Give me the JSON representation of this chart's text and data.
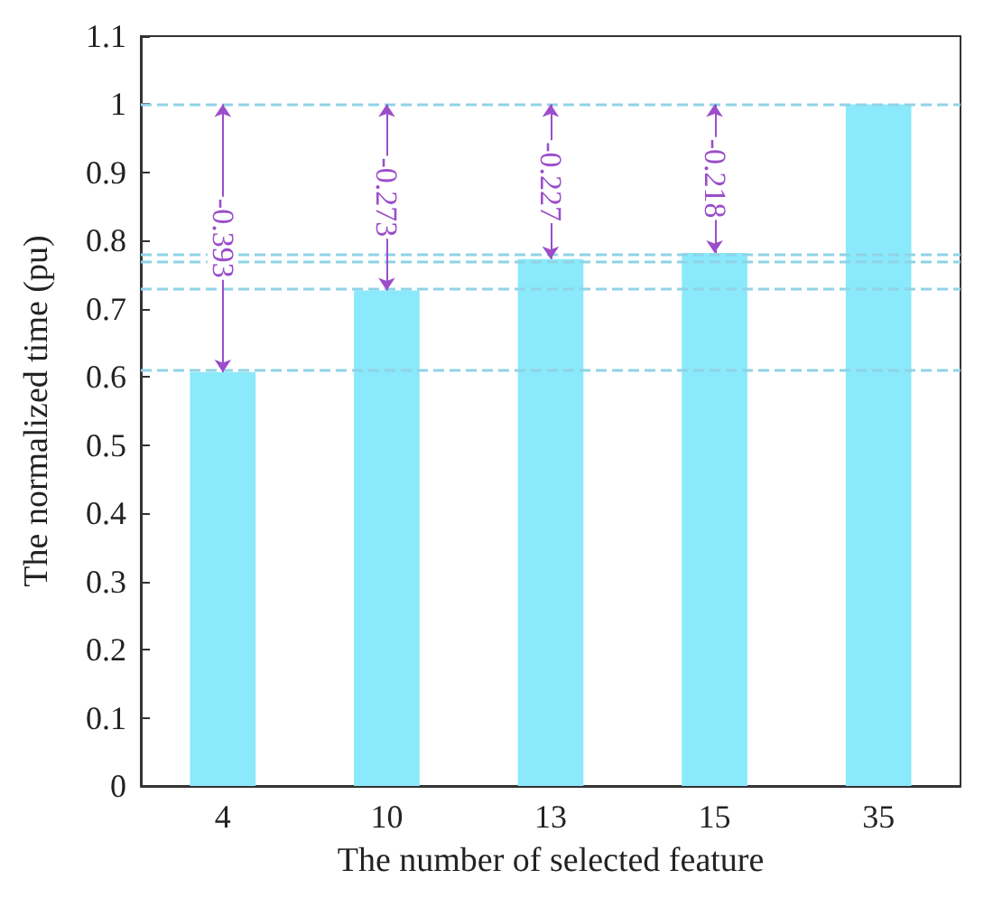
{
  "chart_data": {
    "type": "bar",
    "xlabel": "The number of selected feature",
    "ylabel": "The normalized time (pu)",
    "categories": [
      "4",
      "10",
      "13",
      "15",
      "35"
    ],
    "values": [
      0.607,
      0.727,
      0.773,
      0.782,
      1
    ],
    "color": "#8ae9fb",
    "ylim": [
      0,
      1.1
    ],
    "yticks": [
      0,
      0.1,
      0.2,
      0.3,
      0.4,
      0.5,
      0.6,
      0.7,
      0.8,
      0.9,
      1,
      1.1
    ],
    "grid": false,
    "ref_lines": [
      {
        "axis": "y",
        "value": 1,
        "color": "#8fd3e6",
        "line_style": "dashed"
      },
      {
        "axis": "y",
        "value": 0.782,
        "color": "#8fd3e6",
        "line_style": "dashed"
      },
      {
        "axis": "y",
        "value": 0.773,
        "color": "#8fd3e6",
        "line_style": "dashed"
      },
      {
        "axis": "y",
        "value": 0.727,
        "color": "#8fd3e6",
        "line_style": "dashed"
      },
      {
        "axis": "y",
        "value": 0.607,
        "color": "#8fd3e6",
        "line_style": "dashed"
      }
    ],
    "annotations": [
      "-0.393",
      "-0.273",
      "-0.227",
      "-0.218"
    ]
  }
}
